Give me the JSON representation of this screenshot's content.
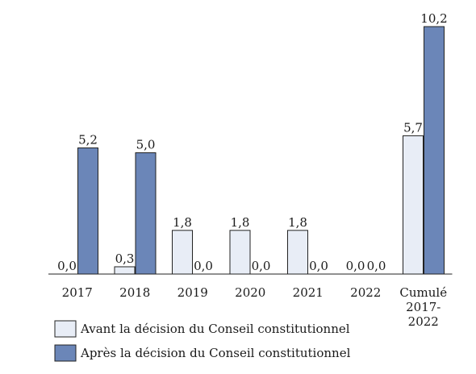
{
  "chart_data": {
    "type": "bar",
    "categories": [
      "2017",
      "2018",
      "2019",
      "2020",
      "2021",
      "2022",
      "Cumulé\n2017-\n2022"
    ],
    "series": [
      {
        "name": "Avant la décision du Conseil constitutionnel",
        "values": [
          0.0,
          0.3,
          1.8,
          1.8,
          1.8,
          0.0,
          5.7
        ],
        "labels": [
          "0,0",
          "0,3",
          "1,8",
          "1,8",
          "1,8",
          "0,0",
          "5,7"
        ],
        "color": "#e8edf6"
      },
      {
        "name": "Après la décision du Conseil constitutionnel",
        "values": [
          5.2,
          5.0,
          0.0,
          0.0,
          0.0,
          0.0,
          10.2
        ],
        "labels": [
          "5,2",
          "5,0",
          "0,0",
          "0,0",
          "0,0",
          "0,0",
          "10,2"
        ],
        "color": "#6b86b8"
      }
    ],
    "ylim": [
      0,
      10.2
    ],
    "grid": false,
    "legend_position": "bottom-left"
  }
}
